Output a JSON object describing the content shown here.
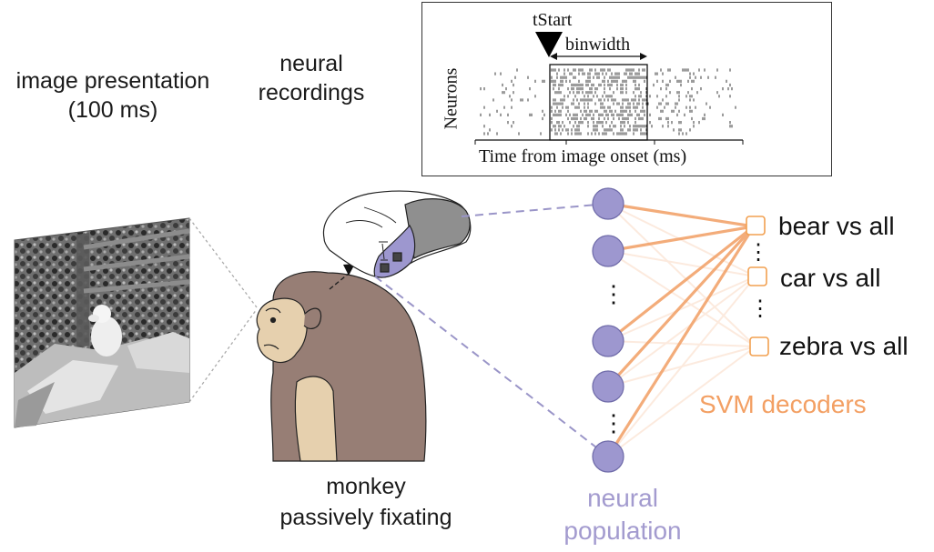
{
  "labels": {
    "image_presentation": "image presentation",
    "duration": "(100 ms)",
    "neural_recordings_1": "neural",
    "neural_recordings_2": "recordings",
    "monkey_1": "monkey",
    "monkey_2": "passively fixating",
    "population_1": "neural",
    "population_2": "population",
    "svm_decoders": "SVM decoders"
  },
  "raster": {
    "tstart": "tStart",
    "binwidth": "binwidth",
    "ylabel": "Neurons",
    "xlabel": "Time from image onset (ms)"
  },
  "decoders": [
    {
      "label": "bear vs all"
    },
    {
      "label": "car vs all"
    },
    {
      "label": "zebra vs all"
    }
  ],
  "ellipsis": "⋮",
  "colors": {
    "neuron_fill": "#9d97cf",
    "neuron_stroke": "#6e6aa8",
    "connection": "#f2a46c",
    "decoder_box": "#f2a050",
    "dashed_line": "#9a95c8",
    "monkey_fur": "#977e75",
    "monkey_skin": "#e6d0ae",
    "brain_implant": "#9d97cf"
  }
}
